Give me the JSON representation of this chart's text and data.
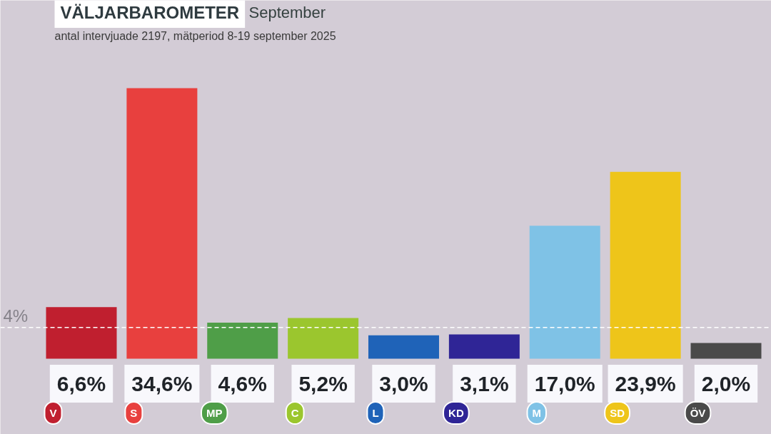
{
  "chart_data": {
    "type": "bar",
    "title": "VÄLJARBAROMETER",
    "subtitle": "September",
    "annotations": [
      "antal intervjuade 2197, mätperiod 8-19 september 2025"
    ],
    "categories": [
      "V",
      "S",
      "MP",
      "C",
      "L",
      "KD",
      "M",
      "SD",
      "ÖV"
    ],
    "values": [
      6.6,
      34.6,
      4.6,
      5.2,
      3.0,
      3.1,
      17.0,
      23.9,
      2.0
    ],
    "colors": [
      "#c01f2f",
      "#e8403e",
      "#4f9e48",
      "#9bc62e",
      "#1f63b8",
      "#2f2596",
      "#7fc2e6",
      "#eec51a",
      "#4a4a4a"
    ],
    "value_labels": [
      "6,6%",
      "34,6%",
      "4,6%",
      "5,2%",
      "3,0%",
      "3,1%",
      "17,0%",
      "23,9%",
      "2,0%"
    ],
    "ref_lines": [
      {
        "axis": "y",
        "value": 4,
        "label": "4%",
        "color": "#ffffff",
        "line_style": "dashed"
      }
    ]
  }
}
